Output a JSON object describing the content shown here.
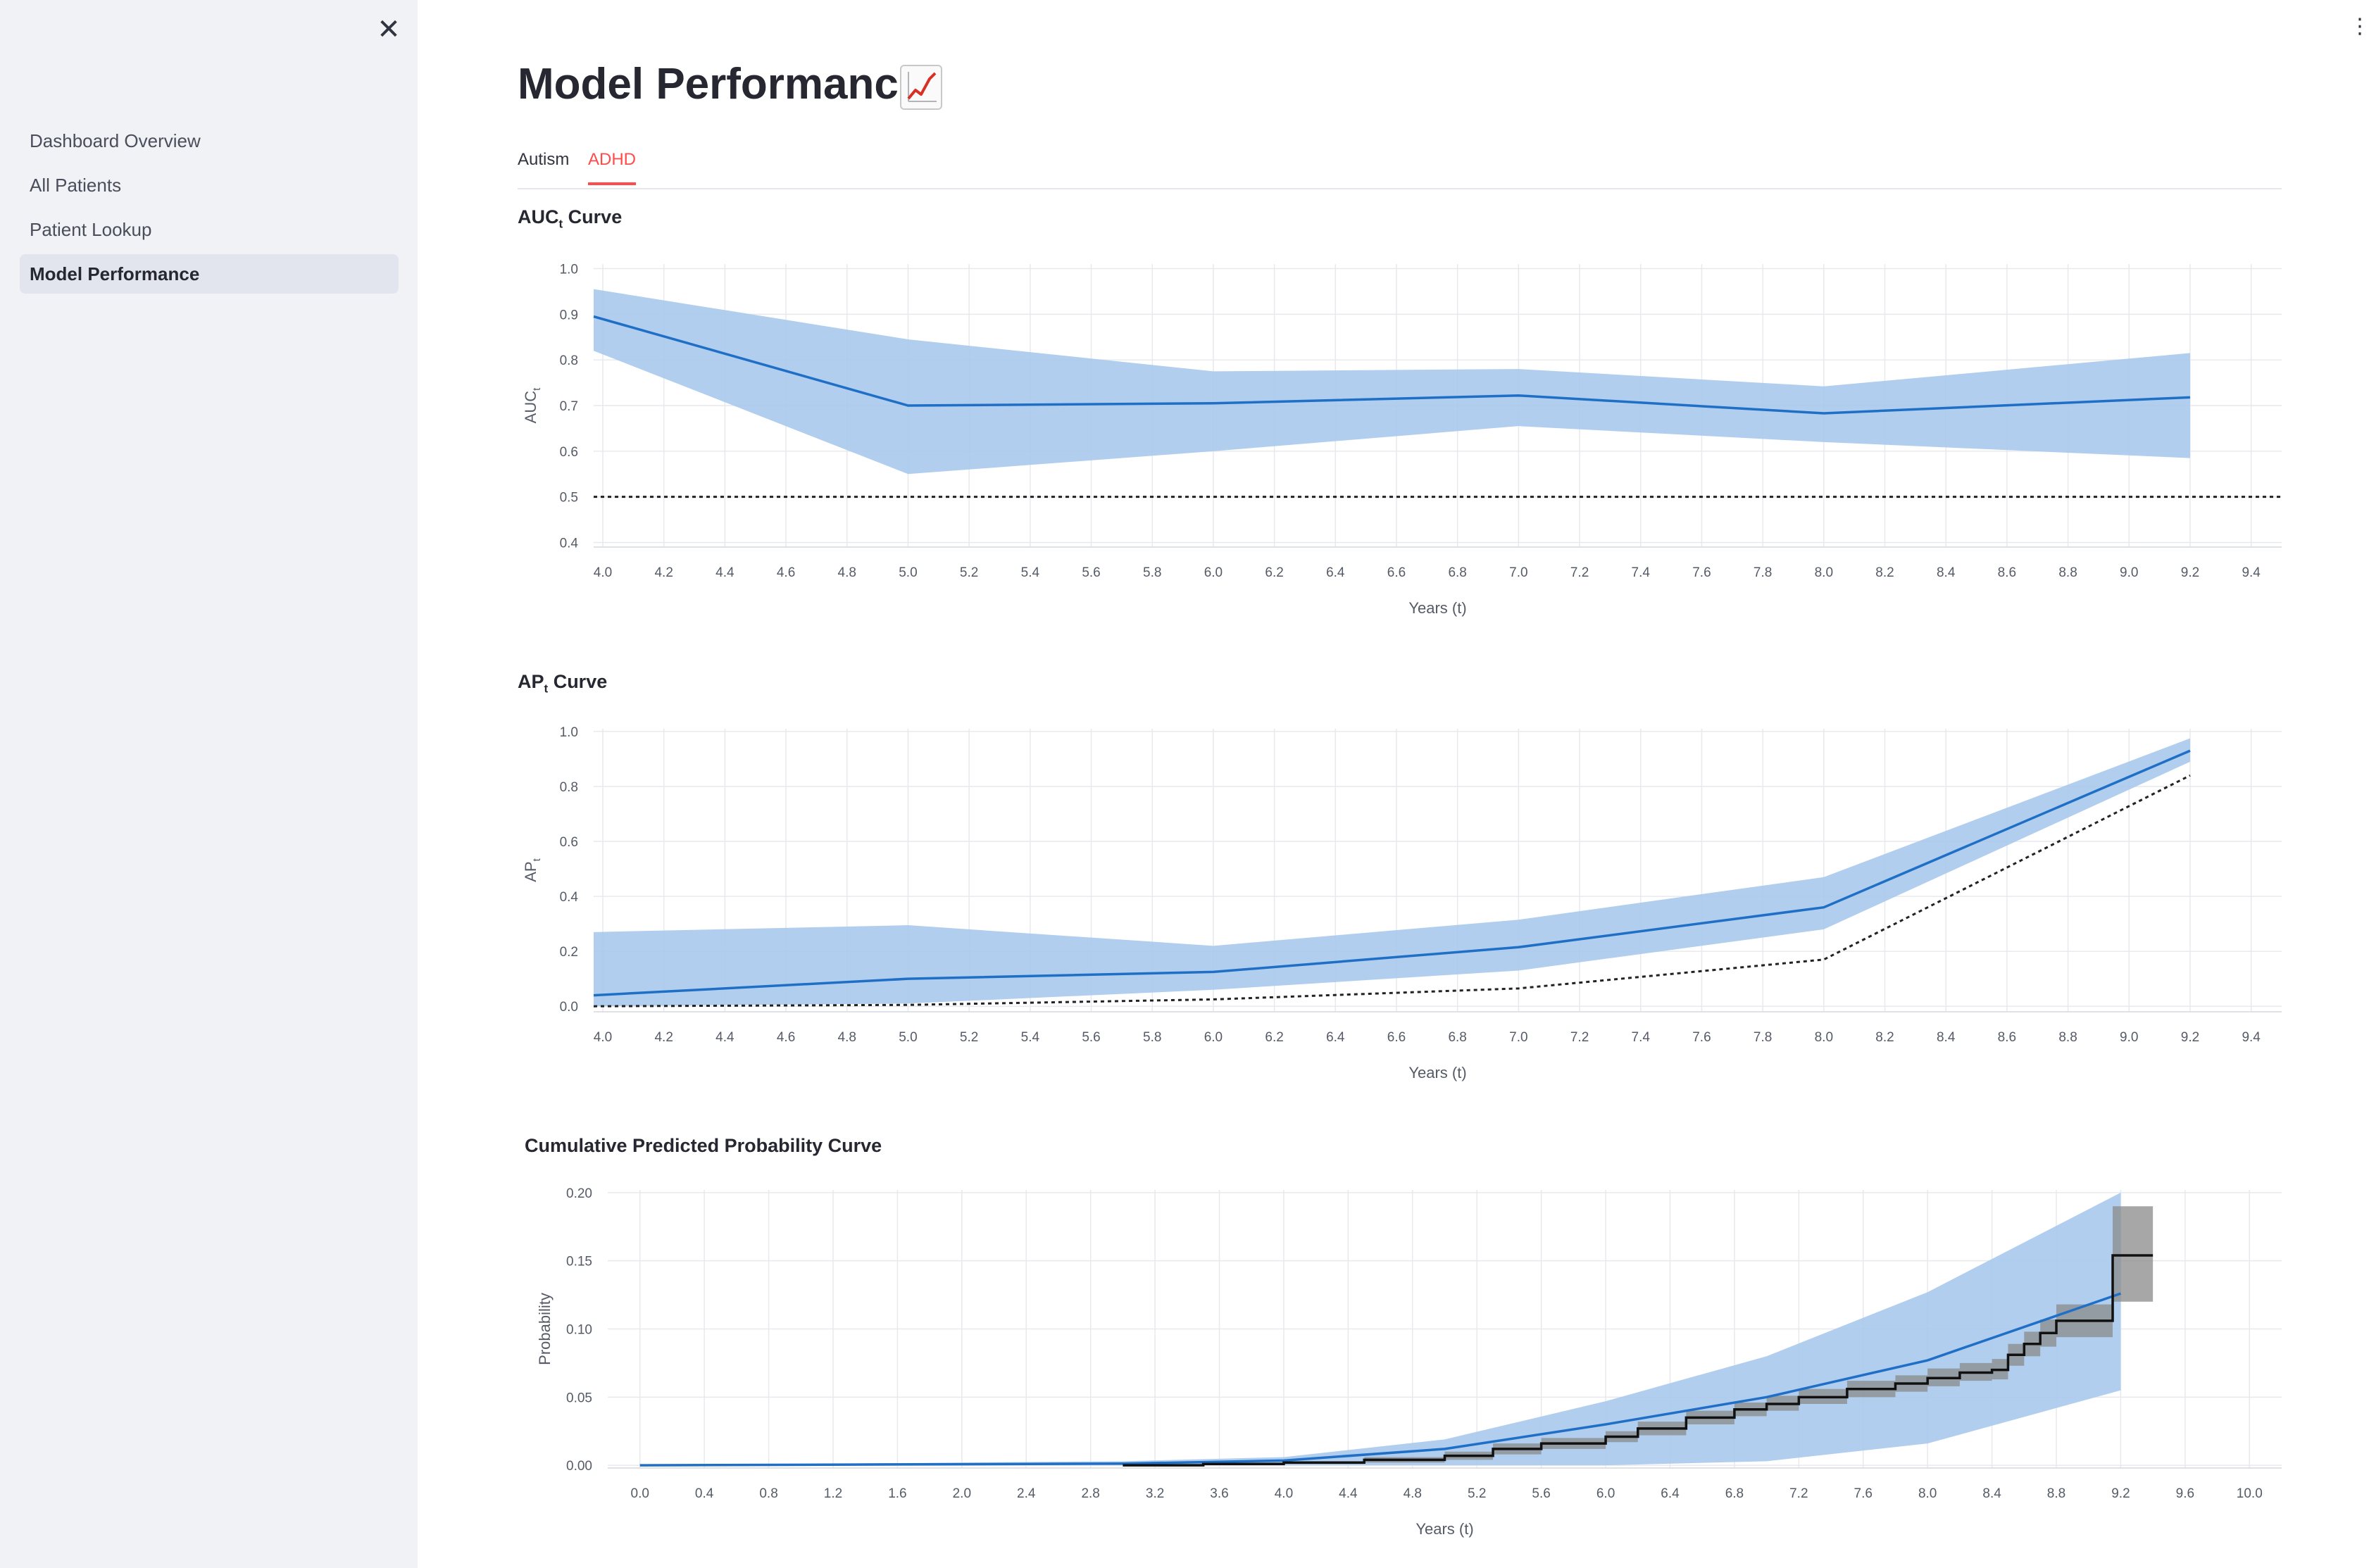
{
  "sidebar": {
    "close_icon": "close-icon",
    "items": [
      {
        "label": "Dashboard Overview",
        "active": false
      },
      {
        "label": "All Patients",
        "active": false
      },
      {
        "label": "Patient Lookup",
        "active": false
      },
      {
        "label": "Model Performance",
        "active": true
      }
    ]
  },
  "header": {
    "title": "Model Performance",
    "title_icon": "chart-increasing-icon",
    "menu_icon": "more-vertical-icon"
  },
  "tabs": [
    {
      "label": "Autism",
      "active": false
    },
    {
      "label": "ADHD",
      "active": true
    }
  ],
  "colors": {
    "accent_red": "#ff4b4b",
    "line_blue": "#1f6fc6",
    "band_blue": "#a9c9ec",
    "km_black": "#111111",
    "km_band_gray": "#8a8a8a"
  },
  "sections": {
    "auc": {
      "title_main": "AUC",
      "title_sub": "t",
      "title_rest": " Curve"
    },
    "ap": {
      "title_main": "AP",
      "title_sub": "t",
      "title_rest": " Curve"
    },
    "cum": {
      "title": "Cumulative Predicted Probability Curve"
    }
  },
  "chart_data": [
    {
      "type": "line",
      "xlabel": "Years (t)",
      "ylabel_main": "AUC",
      "ylabel_sub": "t",
      "xlim": [
        3.97,
        9.5
      ],
      "ylim": [
        0.39,
        1.01
      ],
      "xticks": [
        4.0,
        4.2,
        4.4,
        4.6,
        4.8,
        5.0,
        5.2,
        5.4,
        5.6,
        5.8,
        6.0,
        6.2,
        6.4,
        6.6,
        6.8,
        7.0,
        7.2,
        7.4,
        7.6,
        7.8,
        8.0,
        8.2,
        8.4,
        8.6,
        8.8,
        9.0,
        9.2,
        9.4
      ],
      "yticks": [
        0.4,
        0.5,
        0.6,
        0.7,
        0.8,
        0.9,
        1.0
      ],
      "x": [
        3.97,
        5.0,
        6.0,
        7.0,
        8.0,
        9.2
      ],
      "series": [
        {
          "values": [
            0.895,
            0.7,
            0.705,
            0.722,
            0.683,
            0.718
          ],
          "lower": [
            0.82,
            0.55,
            0.6,
            0.655,
            0.62,
            0.585
          ],
          "upper": [
            0.955,
            0.845,
            0.775,
            0.78,
            0.742,
            0.815
          ]
        }
      ],
      "reference_line": {
        "style": "dotted",
        "x": [
          3.97,
          9.5
        ],
        "values": [
          0.5,
          0.5
        ]
      },
      "grid": true
    },
    {
      "type": "line",
      "xlabel": "Years (t)",
      "ylabel_main": "AP",
      "ylabel_sub": "t",
      "xlim": [
        3.97,
        9.5
      ],
      "ylim": [
        -0.02,
        1.01
      ],
      "xticks": [
        4.0,
        4.2,
        4.4,
        4.6,
        4.8,
        5.0,
        5.2,
        5.4,
        5.6,
        5.8,
        6.0,
        6.2,
        6.4,
        6.6,
        6.8,
        7.0,
        7.2,
        7.4,
        7.6,
        7.8,
        8.0,
        8.2,
        8.4,
        8.6,
        8.8,
        9.0,
        9.2,
        9.4
      ],
      "yticks": [
        0.0,
        0.2,
        0.4,
        0.6,
        0.8,
        1.0
      ],
      "x": [
        3.97,
        5.0,
        6.0,
        7.0,
        8.0,
        9.2
      ],
      "series": [
        {
          "values": [
            0.04,
            0.1,
            0.125,
            0.215,
            0.36,
            0.93
          ],
          "lower": [
            0.0,
            0.01,
            0.06,
            0.13,
            0.28,
            0.89
          ],
          "upper": [
            0.27,
            0.295,
            0.22,
            0.315,
            0.47,
            0.975
          ]
        }
      ],
      "reference_line": {
        "style": "dotted",
        "x": [
          3.97,
          5.0,
          6.0,
          7.0,
          8.0,
          9.2
        ],
        "values": [
          0.0,
          0.005,
          0.025,
          0.065,
          0.17,
          0.84
        ]
      },
      "grid": true
    },
    {
      "type": "line",
      "xlabel": "Years (t)",
      "ylabel": "Probability",
      "xlim": [
        -0.2,
        10.2
      ],
      "ylim": [
        -0.002,
        0.202
      ],
      "xticks": [
        0.0,
        0.4,
        0.8,
        1.2,
        1.6,
        2.0,
        2.4,
        2.8,
        3.2,
        3.6,
        4.0,
        4.4,
        4.8,
        5.2,
        5.6,
        6.0,
        6.4,
        6.8,
        7.2,
        7.6,
        8.0,
        8.4,
        8.8,
        9.2,
        9.6,
        10.0
      ],
      "yticks": [
        0.0,
        0.05,
        0.1,
        0.15,
        0.2
      ],
      "predicted": {
        "x": [
          0.0,
          3.0,
          4.0,
          5.0,
          6.0,
          7.0,
          8.0,
          9.2
        ],
        "values": [
          0.0,
          0.0012,
          0.0035,
          0.012,
          0.03,
          0.05,
          0.077,
          0.126
        ],
        "lower": [
          0.0,
          0.0,
          0.0,
          0.0,
          0.0,
          0.003,
          0.016,
          0.055
        ],
        "upper": [
          0.0,
          0.003,
          0.006,
          0.019,
          0.047,
          0.08,
          0.127,
          0.2
        ]
      },
      "observed": {
        "x": [
          3.0,
          3.5,
          4.0,
          4.5,
          5.0,
          5.3,
          5.6,
          6.0,
          6.2,
          6.5,
          6.8,
          7.0,
          7.2,
          7.5,
          7.8,
          8.0,
          8.2,
          8.4,
          8.5,
          8.6,
          8.7,
          8.8,
          9.15,
          9.4
        ],
        "values": [
          0.0,
          0.001,
          0.002,
          0.004,
          0.007,
          0.012,
          0.016,
          0.021,
          0.027,
          0.035,
          0.041,
          0.045,
          0.05,
          0.056,
          0.06,
          0.064,
          0.068,
          0.07,
          0.081,
          0.089,
          0.097,
          0.106,
          0.154,
          0.154
        ],
        "lower": [
          0.0,
          0.0,
          0.001,
          0.002,
          0.004,
          0.008,
          0.012,
          0.017,
          0.022,
          0.03,
          0.036,
          0.04,
          0.045,
          0.05,
          0.054,
          0.058,
          0.062,
          0.063,
          0.073,
          0.08,
          0.087,
          0.094,
          0.12,
          0.12
        ],
        "upper": [
          0.001,
          0.002,
          0.003,
          0.006,
          0.01,
          0.016,
          0.02,
          0.025,
          0.032,
          0.04,
          0.046,
          0.051,
          0.056,
          0.062,
          0.066,
          0.071,
          0.075,
          0.078,
          0.089,
          0.098,
          0.107,
          0.118,
          0.19,
          0.19
        ]
      },
      "grid": true
    }
  ]
}
